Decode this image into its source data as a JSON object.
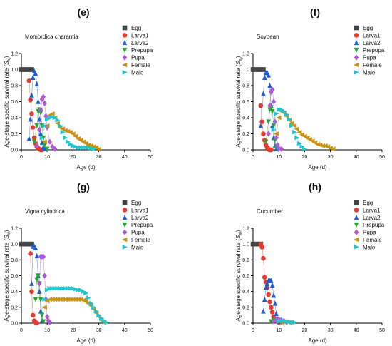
{
  "chart_data": [
    {
      "panel_label": "(e)",
      "type": "scatter",
      "annotation": "Momordica charantia",
      "xlabel": "Age (d)",
      "ylabel_main": "Age-stage specific survival rate (",
      "ylabel_sym": "S",
      "ylabel_sub": "xj",
      "ylabel_close": ")",
      "xlim": [
        0,
        50
      ],
      "ylim": [
        0,
        1.2
      ],
      "xticks": [
        "0",
        "10",
        "20",
        "30",
        "40",
        "50"
      ],
      "yticks": [
        "0.0",
        "0.2",
        "0.4",
        "0.6",
        "0.8",
        "1.0",
        "1.2"
      ],
      "legend_position": "top-right",
      "series": [
        {
          "name": "Egg",
          "color": "#444444",
          "marker": "square",
          "x": [
            0,
            1,
            2,
            3,
            4
          ],
          "y": [
            1,
            1,
            1,
            1,
            1
          ]
        },
        {
          "name": "Larva1",
          "color": "#e8392e",
          "marker": "circle",
          "x": [
            3,
            3.5,
            4,
            4.5,
            5,
            5.5,
            6,
            6.5,
            7,
            7.5,
            8
          ],
          "y": [
            0.86,
            0.62,
            0.45,
            0.28,
            0.15,
            0.08,
            0.04,
            0.02,
            0.01,
            0,
            0
          ]
        },
        {
          "name": "Larva2",
          "color": "#1f5fd1",
          "marker": "triangle-up",
          "x": [
            3,
            3.5,
            4,
            4.5,
            5,
            5.5,
            6,
            6.5,
            7,
            7.5,
            8,
            8.5,
            9
          ],
          "y": [
            0.14,
            0.38,
            0.68,
            0.9,
            0.98,
            0.95,
            0.82,
            0.6,
            0.38,
            0.2,
            0.09,
            0.03,
            0.01
          ]
        },
        {
          "name": "Prepupa",
          "color": "#22a82c",
          "marker": "triangle-down",
          "x": [
            5,
            6,
            6.5,
            7,
            7.5,
            8,
            8.5,
            9,
            10
          ],
          "y": [
            0.1,
            0.3,
            0.48,
            0.5,
            0.46,
            0.3,
            0.15,
            0.06,
            0.01
          ]
        },
        {
          "name": "Pupa",
          "color": "#b05ad6",
          "marker": "diamond",
          "x": [
            6,
            7,
            7.5,
            8,
            8.5,
            9,
            9.5,
            10,
            11,
            12,
            13
          ],
          "y": [
            0.05,
            0.25,
            0.5,
            0.63,
            0.66,
            0.58,
            0.42,
            0.28,
            0.1,
            0.04,
            0.01
          ]
        },
        {
          "name": "Female",
          "color": "#c99211",
          "marker": "triangle-left",
          "x": [
            9,
            10,
            11,
            12,
            13,
            14,
            15,
            16,
            17,
            18,
            19,
            20,
            21,
            22,
            23,
            24,
            25,
            26,
            27,
            28,
            29,
            30
          ],
          "y": [
            0.1,
            0.3,
            0.43,
            0.45,
            0.4,
            0.33,
            0.28,
            0.26,
            0.24,
            0.23,
            0.22,
            0.2,
            0.17,
            0.14,
            0.12,
            0.1,
            0.08,
            0.06,
            0.05,
            0.04,
            0.03,
            0.01
          ]
        },
        {
          "name": "Male",
          "color": "#1ec6cf",
          "marker": "triangle-right",
          "x": [
            8,
            9,
            10,
            11,
            12,
            13,
            14,
            15,
            16,
            17,
            18,
            19,
            20,
            21,
            22,
            23,
            24,
            25,
            26,
            27,
            28
          ],
          "y": [
            0.15,
            0.3,
            0.38,
            0.4,
            0.41,
            0.4,
            0.37,
            0.3,
            0.22,
            0.15,
            0.1,
            0.07,
            0.05,
            0.04,
            0.03,
            0.03,
            0.03,
            0.03,
            0.03,
            0.02,
            0.01
          ]
        }
      ]
    },
    {
      "panel_label": "(f)",
      "type": "scatter",
      "annotation": "Soybean",
      "xlabel": "Age (d)",
      "ylabel_main": "Age-stage specific survival rate (",
      "ylabel_sym": "S",
      "ylabel_sub": "xj",
      "ylabel_close": ")",
      "xlim": [
        0,
        50
      ],
      "ylim": [
        0,
        1.2
      ],
      "xticks": [
        "0",
        "10",
        "20",
        "30",
        "40",
        "50"
      ],
      "yticks": [
        "0.0",
        "0.2",
        "0.4",
        "0.6",
        "0.8",
        "1.0",
        "1.2"
      ],
      "legend_position": "top-right",
      "series": [
        {
          "name": "Egg",
          "color": "#444444",
          "marker": "square",
          "x": [
            0,
            1,
            2,
            3,
            4
          ],
          "y": [
            1,
            1,
            1,
            1,
            1
          ]
        },
        {
          "name": "Larva1",
          "color": "#e8392e",
          "marker": "circle",
          "x": [
            3,
            3.5,
            4,
            4.5,
            5,
            5.5,
            6,
            6.5,
            7
          ],
          "y": [
            0.55,
            0.35,
            0.2,
            0.12,
            0.06,
            0.03,
            0.01,
            0,
            0
          ]
        },
        {
          "name": "Larva2",
          "color": "#1f5fd1",
          "marker": "triangle-up",
          "x": [
            3,
            4,
            4.5,
            5,
            5.5,
            6,
            6.5,
            7,
            7.5,
            8,
            8.5,
            9
          ],
          "y": [
            0.3,
            0.7,
            0.9,
            0.96,
            0.96,
            0.93,
            0.8,
            0.55,
            0.3,
            0.15,
            0.05,
            0.01
          ]
        },
        {
          "name": "Prepupa",
          "color": "#22a82c",
          "marker": "triangle-down",
          "x": [
            5,
            6,
            6.5,
            7,
            7.5,
            8,
            8.5,
            9
          ],
          "y": [
            0.1,
            0.35,
            0.5,
            0.53,
            0.48,
            0.3,
            0.12,
            0.03
          ]
        },
        {
          "name": "Pupa",
          "color": "#b05ad6",
          "marker": "diamond",
          "x": [
            6,
            6.5,
            7,
            7.5,
            8,
            8.5,
            9,
            9.5,
            10,
            11
          ],
          "y": [
            0.2,
            0.55,
            0.72,
            0.75,
            0.6,
            0.35,
            0.15,
            0.06,
            0.02,
            0.01
          ]
        },
        {
          "name": "Female",
          "color": "#c99211",
          "marker": "triangle-left",
          "x": [
            9,
            10,
            11,
            12,
            13,
            14,
            15,
            16,
            17,
            18,
            19,
            20,
            21,
            22,
            23,
            24,
            25,
            26,
            27,
            28,
            29,
            30,
            31
          ],
          "y": [
            0.2,
            0.4,
            0.48,
            0.46,
            0.42,
            0.37,
            0.33,
            0.3,
            0.26,
            0.22,
            0.19,
            0.17,
            0.15,
            0.13,
            0.11,
            0.09,
            0.07,
            0.06,
            0.05,
            0.05,
            0.04,
            0.02,
            0.01
          ]
        },
        {
          "name": "Male",
          "color": "#1ec6cf",
          "marker": "triangle-right",
          "x": [
            8,
            9,
            10,
            11,
            12,
            13,
            14,
            15,
            16,
            17,
            18,
            19,
            20
          ],
          "y": [
            0.25,
            0.45,
            0.5,
            0.5,
            0.48,
            0.44,
            0.38,
            0.3,
            0.22,
            0.15,
            0.08,
            0.04,
            0.01
          ]
        }
      ]
    },
    {
      "panel_label": "(g)",
      "type": "scatter",
      "annotation": "Vigna cylindrica",
      "xlabel": "Age (d)",
      "ylabel_main": "Age-stage specific survival rate (",
      "ylabel_sym": "S",
      "ylabel_sub": "xj",
      "ylabel_close": ")",
      "xlim": [
        0,
        50
      ],
      "ylim": [
        0,
        1.2
      ],
      "xticks": [
        "0",
        "10",
        "20",
        "30",
        "40",
        "50"
      ],
      "yticks": [
        "0.0",
        "0.2",
        "0.4",
        "0.6",
        "0.8",
        "1.0",
        "1.2"
      ],
      "legend_position": "top-right",
      "series": [
        {
          "name": "Egg",
          "color": "#444444",
          "marker": "square",
          "x": [
            0,
            1,
            2,
            3,
            4
          ],
          "y": [
            1,
            1,
            1,
            1,
            1
          ]
        },
        {
          "name": "Larva1",
          "color": "#e8392e",
          "marker": "circle",
          "x": [
            3.5,
            4,
            4.5,
            5,
            5.5,
            6
          ],
          "y": [
            0.88,
            0.4,
            0.1,
            0.03,
            0.01,
            0
          ]
        },
        {
          "name": "Larva2",
          "color": "#1f5fd1",
          "marker": "triangle-up",
          "x": [
            4,
            4.5,
            5,
            5.5,
            6,
            6.5,
            7,
            7.5,
            8
          ],
          "y": [
            0.5,
            0.97,
            0.97,
            0.95,
            0.85,
            0.6,
            0.4,
            0.15,
            0.03
          ]
        },
        {
          "name": "Prepupa",
          "color": "#22a82c",
          "marker": "triangle-down",
          "x": [
            5.5,
            6,
            6.5,
            7,
            7.5,
            8,
            8.5
          ],
          "y": [
            0.3,
            0.55,
            0.6,
            0.5,
            0.3,
            0.1,
            0.02
          ]
        },
        {
          "name": "Pupa",
          "color": "#b05ad6",
          "marker": "diamond",
          "x": [
            7,
            7.5,
            8,
            8.5,
            9,
            9.5,
            10,
            10.5,
            11
          ],
          "y": [
            0.5,
            0.84,
            0.84,
            0.84,
            0.6,
            0.3,
            0.08,
            0.03,
            0.01
          ]
        },
        {
          "name": "Female",
          "color": "#c99211",
          "marker": "triangle-left",
          "x": [
            9,
            10,
            11,
            12,
            13,
            14,
            15,
            16,
            17,
            18,
            19,
            20,
            21,
            22,
            23,
            24,
            25,
            26,
            27,
            28,
            29,
            30,
            31,
            32
          ],
          "y": [
            0.2,
            0.28,
            0.3,
            0.3,
            0.3,
            0.3,
            0.3,
            0.3,
            0.3,
            0.3,
            0.3,
            0.3,
            0.3,
            0.3,
            0.3,
            0.29,
            0.27,
            0.25,
            0.22,
            0.18,
            0.13,
            0.08,
            0.04,
            0.01
          ]
        },
        {
          "name": "Male",
          "color": "#1ec6cf",
          "marker": "triangle-right",
          "x": [
            9,
            10,
            11,
            12,
            13,
            14,
            15,
            16,
            17,
            18,
            19,
            20,
            21,
            22,
            23,
            24,
            25,
            26,
            27,
            28,
            29,
            30,
            31,
            32,
            33
          ],
          "y": [
            0.3,
            0.42,
            0.44,
            0.44,
            0.44,
            0.44,
            0.44,
            0.44,
            0.44,
            0.44,
            0.44,
            0.44,
            0.43,
            0.42,
            0.42,
            0.4,
            0.38,
            0.32,
            0.25,
            0.2,
            0.15,
            0.1,
            0.06,
            0.03,
            0.01
          ]
        }
      ]
    },
    {
      "panel_label": "(h)",
      "type": "scatter",
      "annotation": "Cucumber",
      "xlabel": "Age (d)",
      "ylabel_main": "Age-stage specific survival rate (",
      "ylabel_sym": "S",
      "ylabel_sub": "xj",
      "ylabel_close": ")",
      "xlim": [
        0,
        50
      ],
      "ylim": [
        0,
        1.2
      ],
      "xticks": [
        "0",
        "10",
        "20",
        "30",
        "40",
        "50"
      ],
      "yticks": [
        "0.0",
        "0.2",
        "0.4",
        "0.6",
        "0.8",
        "1.0",
        "1.2"
      ],
      "legend_position": "top-right",
      "series": [
        {
          "name": "Egg",
          "color": "#444444",
          "marker": "square",
          "x": [
            0,
            1,
            2,
            3
          ],
          "y": [
            1,
            1,
            1,
            1
          ]
        },
        {
          "name": "Larva1",
          "color": "#e8392e",
          "marker": "circle",
          "x": [
            3,
            3.5,
            4,
            4.5,
            5,
            5.5,
            6,
            6.5,
            7,
            7.5,
            8,
            8.5,
            9,
            9.5,
            10
          ],
          "y": [
            1,
            0.96,
            0.82,
            0.58,
            0.52,
            0.45,
            0.36,
            0.27,
            0.2,
            0.14,
            0.08,
            0.05,
            0.03,
            0.02,
            0.01
          ]
        },
        {
          "name": "Larva2",
          "color": "#1f5fd1",
          "marker": "triangle-up",
          "x": [
            4,
            4.5,
            5,
            5.5,
            6,
            6.5,
            7,
            7.5,
            8,
            8.5,
            9,
            9.5,
            10
          ],
          "y": [
            0.15,
            0.3,
            0.45,
            0.5,
            0.54,
            0.54,
            0.54,
            0.48,
            0.35,
            0.25,
            0.12,
            0.05,
            0.02
          ]
        },
        {
          "name": "Prepupa",
          "color": "#22a82c",
          "marker": "triangle-down",
          "x": [
            7,
            8,
            9,
            10,
            11
          ],
          "y": [
            0.02,
            0.04,
            0.04,
            0.03,
            0.01
          ]
        },
        {
          "name": "Pupa",
          "color": "#b05ad6",
          "marker": "diamond",
          "x": [
            8,
            9,
            10,
            11,
            12,
            13
          ],
          "y": [
            0.02,
            0.04,
            0.05,
            0.04,
            0.03,
            0.01
          ]
        },
        {
          "name": "Female",
          "color": "#c99211",
          "marker": "triangle-left",
          "x": [
            11,
            12,
            13,
            14,
            15
          ],
          "y": [
            0.01,
            0.02,
            0.02,
            0.01,
            0.01
          ]
        },
        {
          "name": "Male",
          "color": "#1ec6cf",
          "marker": "triangle-right",
          "x": [
            10,
            11,
            12,
            13,
            14,
            15,
            16
          ],
          "y": [
            0.02,
            0.03,
            0.03,
            0.02,
            0.02,
            0.01,
            0.01
          ]
        }
      ]
    }
  ]
}
